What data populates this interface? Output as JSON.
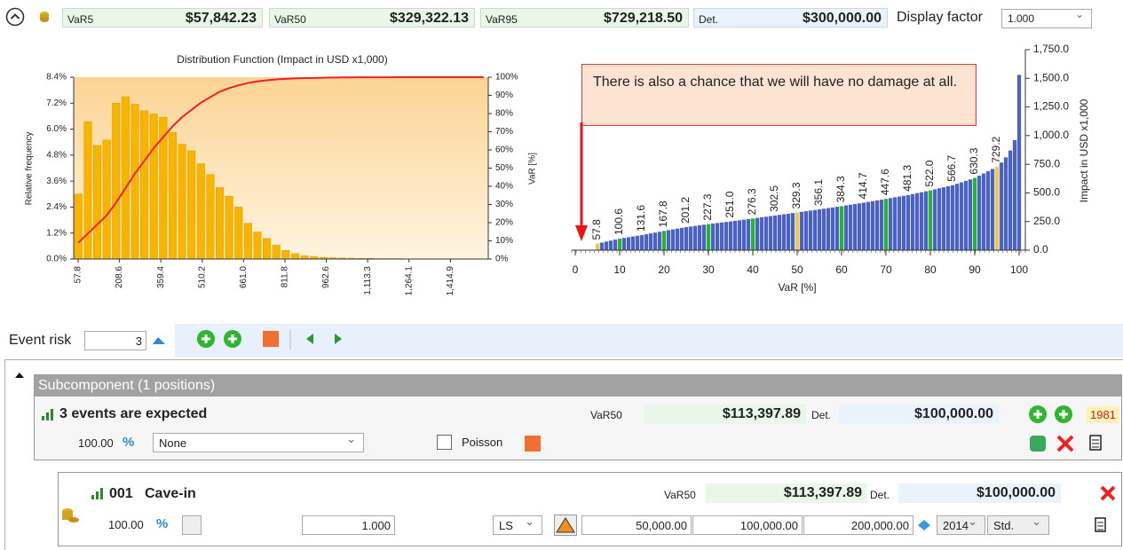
{
  "header": {
    "fields": [
      {
        "label": "VaR5",
        "value": "$57,842.23"
      },
      {
        "label": "VaR50",
        "value": "$329,322.13"
      },
      {
        "label": "VaR95",
        "value": "$729,218.50"
      },
      {
        "label": "Det.",
        "value": "$300,000.00"
      }
    ],
    "display_factor_label": "Display factor",
    "display_factor": "1.000"
  },
  "chart_data": [
    {
      "type": "histogram",
      "title": "Distribution Function (Impact in USD x1,000)",
      "ylabel": "Relative frequency",
      "y2label": "VaR [%]",
      "color": "#f7b500",
      "bins": [
        41.6,
        75.95,
        110.3,
        144.65,
        179.0,
        213.35,
        247.7,
        282.05,
        316.4,
        350.75,
        385.1,
        419.45,
        453.8,
        488.15,
        522.5,
        556.85,
        591.2,
        625.55,
        659.9,
        694.25,
        728.6,
        762.95,
        797.3,
        831.65,
        866.0,
        900.35,
        934.7,
        969.05,
        1003.4,
        1037.75,
        1072.1,
        1106.45,
        1140.8,
        1175.15,
        1209.5,
        1243.85,
        1278.2,
        1312.55,
        1346.9,
        1381.25,
        1415.6,
        1449.95,
        1484.3,
        1518.65,
        1553.0
      ],
      "values": [
        3.0,
        6.35,
        5.25,
        5.5,
        7.2,
        7.5,
        7.15,
        6.85,
        6.7,
        6.55,
        5.85,
        5.3,
        5.0,
        4.4,
        3.9,
        3.3,
        2.9,
        2.4,
        1.65,
        1.25,
        0.95,
        0.65,
        0.4,
        0.25,
        0.15,
        0.12,
        0.08,
        0.06,
        0.05,
        0.04,
        0.03,
        0.03,
        0.02,
        0.02,
        0.02,
        0.01,
        0.01,
        0.01,
        0.01,
        0.01,
        0.01,
        0.01,
        0.01,
        0.01
      ],
      "line": {
        "color": "#ee2222",
        "axis": "y2",
        "values": [
          9,
          14,
          19,
          24,
          31,
          39,
          47,
          54,
          61,
          67,
          73,
          78,
          82,
          86,
          89,
          92,
          94,
          95.5,
          96.8,
          97.7,
          98.3,
          98.8,
          99.1,
          99.3,
          99.5,
          99.6,
          99.7,
          99.8,
          99.85,
          99.9,
          99.92,
          99.94,
          99.95,
          99.96,
          99.97,
          99.98,
          99.98,
          99.99,
          99.99,
          99.99,
          100,
          100,
          100,
          100
        ]
      },
      "xlim": [
        41.6,
        1553.0
      ],
      "xticks": [
        57.8,
        208.6,
        359.4,
        510.2,
        {
          "value": 661,
          "label": "661.0"
        },
        811.8,
        962.6,
        {
          "value": 1113.3,
          "label": "1,113.3"
        },
        {
          "value": 1264.1,
          "label": "1,264.1"
        },
        {
          "value": 1414.9,
          "label": "1,414.9"
        }
      ],
      "ylim": [
        0,
        8.4
      ],
      "yticks": [
        {
          "value": 0,
          "label": "0.0%"
        },
        {
          "value": 1.2,
          "label": "1.2%"
        },
        {
          "value": 2.4,
          "label": "2.4%"
        },
        {
          "value": 3.6,
          "label": "3.6%"
        },
        {
          "value": 4.8,
          "label": "4.8%"
        },
        {
          "value": 6,
          "label": "6.0%"
        },
        {
          "value": 7.2,
          "label": "7.2%"
        },
        {
          "value": 8.4,
          "label": "8.4%"
        }
      ],
      "y2lim": [
        0,
        100
      ],
      "y2ticks": [
        {
          "value": 0,
          "label": "0%"
        },
        {
          "value": 10,
          "label": "10%"
        },
        {
          "value": 20,
          "label": "20%"
        },
        {
          "value": 30,
          "label": "30%"
        },
        {
          "value": 40,
          "label": "40%"
        },
        {
          "value": 50,
          "label": "50%"
        },
        {
          "value": 60,
          "label": "60%"
        },
        {
          "value": 70,
          "label": "70%"
        },
        {
          "value": 80,
          "label": "80%"
        },
        {
          "value": 90,
          "label": "90%"
        },
        {
          "value": 100,
          "label": "100%"
        }
      ]
    },
    {
      "type": "bar",
      "annotation": "There is also a chance that we will have no damage at all.",
      "xlabel": "VaR [%]",
      "ylabel": "Impact in USD x1,000",
      "color": "#4a62c8",
      "highlights": [
        {
          "x": [
            5,
            50,
            95
          ],
          "color": "#f0c84a"
        },
        {
          "x": [
            10,
            20,
            30,
            40,
            60,
            70,
            80,
            90
          ],
          "color": "#27b527"
        }
      ],
      "x": [
        1,
        2,
        3,
        4,
        5,
        6,
        7,
        8,
        9,
        10,
        11,
        12,
        13,
        14,
        15,
        16,
        17,
        18,
        19,
        20,
        21,
        22,
        23,
        24,
        25,
        26,
        27,
        28,
        29,
        30,
        31,
        32,
        33,
        34,
        35,
        36,
        37,
        38,
        39,
        40,
        41,
        42,
        43,
        44,
        45,
        46,
        47,
        48,
        49,
        50,
        51,
        52,
        53,
        54,
        55,
        56,
        57,
        58,
        59,
        60,
        61,
        62,
        63,
        64,
        65,
        66,
        67,
        68,
        69,
        70,
        71,
        72,
        73,
        74,
        75,
        76,
        77,
        78,
        79,
        80,
        81,
        82,
        83,
        84,
        85,
        86,
        87,
        88,
        89,
        90,
        91,
        92,
        93,
        94,
        95,
        96,
        97,
        98,
        99,
        100
      ],
      "values": [
        0,
        0,
        0,
        0,
        57.8,
        66.4,
        75,
        83.5,
        92.1,
        100.6,
        106.8,
        113,
        119.2,
        125.4,
        131.6,
        138.8,
        146,
        153.3,
        160.5,
        167.8,
        174.5,
        181.2,
        187.9,
        194.5,
        201.2,
        206.4,
        211.6,
        216.9,
        222.1,
        227.3,
        232,
        236.8,
        241.5,
        246.3,
        251,
        256.1,
        261.1,
        266.2,
        271.2,
        276.3,
        281.5,
        286.8,
        292,
        297.3,
        302.5,
        307.9,
        313.2,
        318.6,
        323.9,
        329.3,
        334.7,
        340,
        345.4,
        350.7,
        356.1,
        361.7,
        367.4,
        373,
        378.7,
        384.3,
        390.4,
        396.5,
        402.6,
        408.6,
        414.7,
        421.3,
        427.9,
        434.4,
        441,
        447.6,
        454.3,
        461.1,
        467.8,
        474.6,
        481.3,
        489.4,
        497.6,
        505.7,
        513.9,
        522,
        530.9,
        539.9,
        548.8,
        557.8,
        566.7,
        579.4,
        592.2,
        604.9,
        617.6,
        630.3,
        650,
        669.8,
        689.6,
        709.4,
        729.2,
        765,
        810,
        870,
        960,
        1530
      ],
      "value_labels": [
        null,
        null,
        null,
        null,
        "57.8",
        null,
        null,
        null,
        null,
        "100.6",
        null,
        null,
        null,
        null,
        "131.6",
        null,
        null,
        null,
        null,
        "167.8",
        null,
        null,
        null,
        null,
        "201.2",
        null,
        null,
        null,
        null,
        "227.3",
        null,
        null,
        null,
        null,
        "251.0",
        null,
        null,
        null,
        null,
        "276.3",
        null,
        null,
        null,
        null,
        "302.5",
        null,
        null,
        null,
        null,
        "329.3",
        null,
        null,
        null,
        null,
        "356.1",
        null,
        null,
        null,
        null,
        "384.3",
        null,
        null,
        null,
        null,
        "414.7",
        null,
        null,
        null,
        null,
        "447.6",
        null,
        null,
        null,
        null,
        "481.3",
        null,
        null,
        null,
        null,
        "522.0",
        null,
        null,
        null,
        null,
        "566.7",
        null,
        null,
        null,
        null,
        "630.3",
        null,
        null,
        null,
        null,
        "729.2",
        null,
        null,
        null,
        null,
        null
      ],
      "xlim": [
        0,
        100
      ],
      "xticks": [
        0,
        10,
        20,
        30,
        40,
        50,
        60,
        70,
        80,
        90,
        100
      ],
      "ylim": [
        0,
        1750
      ],
      "yticks": [
        {
          "value": 0,
          "label": "0.0"
        },
        {
          "value": 250,
          "label": "250.0"
        },
        {
          "value": 500,
          "label": "500.0"
        },
        {
          "value": 750,
          "label": "750.0"
        },
        {
          "value": 1000,
          "label": "1,000.0"
        },
        {
          "value": 1250,
          "label": "1,250.0"
        },
        {
          "value": 1500,
          "label": "1,500.0"
        },
        {
          "value": 1750,
          "label": "1,750.0"
        }
      ]
    }
  ],
  "toolbar": {
    "label": "Event risk",
    "count": "3"
  },
  "group": {
    "title": "Subcomponent (1 positions)",
    "expected": "3 events are expected",
    "var_label": "VaR50",
    "var_value": "$113,397.89",
    "det_label": "Det.",
    "det_value": "$100,000.00",
    "year": "1981",
    "percent": "100.00",
    "distribution": "None",
    "poisson": "Poisson"
  },
  "item": {
    "number": "001",
    "name": "Cave-in",
    "var_label": "VaR50",
    "var_value": "$113,397.89",
    "det_label": "Det.",
    "det_value": "$100,000.00",
    "percent": "100.00",
    "factor": "1.000",
    "kind": "LS",
    "low": "50,000.00",
    "mid": "100,000.00",
    "high": "200,000.00",
    "year": "2014",
    "mode": "Std."
  }
}
